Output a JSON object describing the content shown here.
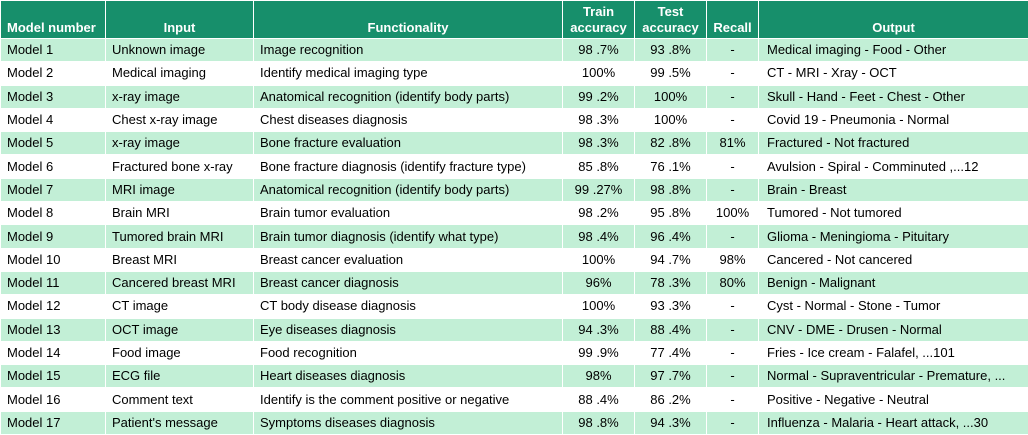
{
  "headers": [
    "Model number",
    "Input",
    "Functionality",
    "Train accuracy",
    "Test accuracy",
    "Recall",
    "Output"
  ],
  "header_lines": [
    [
      "Model number"
    ],
    [
      "Input"
    ],
    [
      "Functionality"
    ],
    [
      "Train",
      "accuracy"
    ],
    [
      "Test",
      "accuracy"
    ],
    [
      "Recall"
    ],
    [
      "Output"
    ]
  ],
  "rows": [
    [
      "Model 1",
      "Unknown image",
      "Image recognition",
      "98 .7%",
      "93 .8%",
      "-",
      "Medical imaging - Food - Other"
    ],
    [
      "Model 2",
      "Medical imaging",
      "Identify medical imaging type",
      "100%",
      "99 .5%",
      "-",
      "CT - MRI - Xray - OCT"
    ],
    [
      "Model 3",
      "x-ray image",
      "Anatomical recognition (identify body parts)",
      "99 .2%",
      "100%",
      "-",
      "Skull - Hand - Feet - Chest - Other"
    ],
    [
      "Model 4",
      "Chest x-ray image",
      "Chest diseases diagnosis",
      "98 .3%",
      "100%",
      "-",
      "Covid 19 - Pneumonia - Normal"
    ],
    [
      "Model 5",
      "x-ray image",
      "Bone fracture evaluation",
      "98 .3%",
      "82 .8%",
      "81%",
      "Fractured - Not fractured"
    ],
    [
      "Model 6",
      "Fractured bone x-ray",
      "Bone fracture diagnosis (identify fracture type)",
      "85 .8%",
      "76 .1%",
      "-",
      "Avulsion - Spiral - Comminuted ,...12"
    ],
    [
      "Model 7",
      "MRI image",
      "Anatomical recognition (identify body parts)",
      "99 .27%",
      "98 .8%",
      "-",
      " Brain - Breast"
    ],
    [
      "Model 8",
      "Brain MRI",
      "Brain tumor evaluation",
      "98 .2%",
      "95 .8%",
      "100%",
      "Tumored - Not tumored"
    ],
    [
      "Model 9",
      "Tumored brain MRI",
      "Brain tumor diagnosis (identify what type)",
      "98 .4%",
      "96 .4%",
      "-",
      "Glioma - Meningioma - Pituitary"
    ],
    [
      "Model 10",
      "Breast MRI",
      "Breast cancer evaluation",
      "100%",
      "94 .7%",
      "98%",
      "Cancered - Not cancered"
    ],
    [
      "Model 11",
      "Cancered breast MRI",
      "Breast cancer diagnosis",
      "96%",
      "78 .3%",
      "80%",
      "Benign - Malignant"
    ],
    [
      "Model 12",
      "CT image",
      "CT body disease diagnosis",
      "100%",
      "93 .3%",
      "-",
      "Cyst - Normal - Stone - Tumor"
    ],
    [
      "Model 13",
      "OCT image",
      "Eye diseases diagnosis",
      "94 .3%",
      "88 .4%",
      "-",
      "CNV - DME - Drusen - Normal"
    ],
    [
      "Model 14",
      "Food image",
      "Food recognition",
      "99 .9%",
      "77 .4%",
      "-",
      "Fries - Ice cream - Falafel, ...101"
    ],
    [
      "Model 15",
      "ECG file",
      "Heart diseases diagnosis",
      "98%",
      "97 .7%",
      "-",
      "Normal - Supraventricular - Premature, ..."
    ],
    [
      "Model 16",
      "Comment text",
      "Identify is the comment positive or negative",
      "88 .4%",
      "86 .2%",
      "-",
      "Positive - Negative - Neutral"
    ],
    [
      "Model 17",
      "Patient's message",
      "Symptoms diseases diagnosis",
      "98 .8%",
      "94 .3%",
      "-",
      "Influenza - Malaria - Heart attack, ...30"
    ]
  ],
  "colors": {
    "header_bg": "#178f6b",
    "header_text": "#ffffff",
    "band": "#c2efd6",
    "plain": "#ffffff"
  }
}
